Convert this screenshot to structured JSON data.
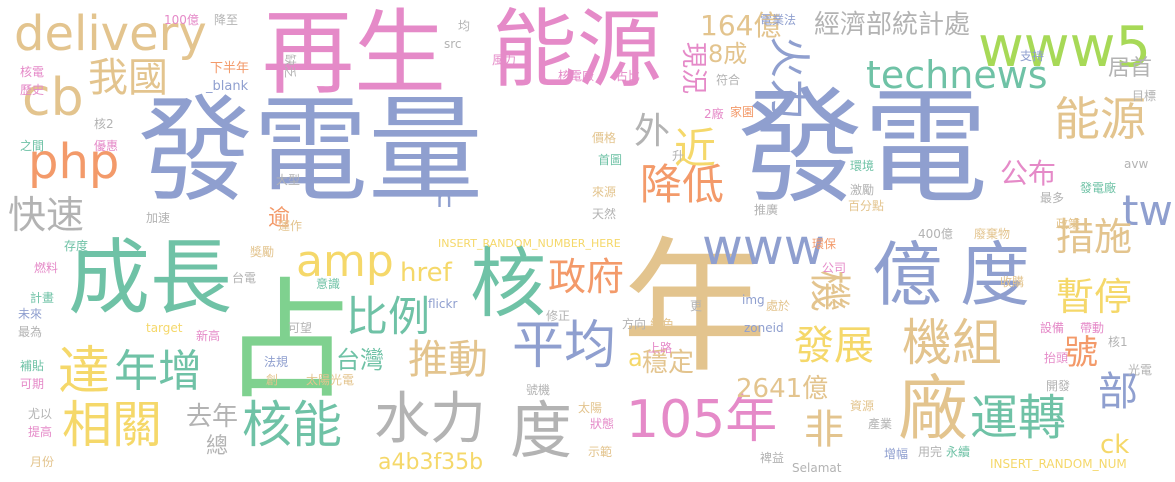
{
  "palette": {
    "blue": "#8f9fcf",
    "pink": "#e58ac8",
    "tan": "#e3c48e",
    "green": "#7fd18f",
    "lime": "#a7d957",
    "orange": "#f39a6a",
    "yellow": "#f5d86a",
    "gray": "#b3b3b3",
    "teal": "#6fc2a6",
    "sky": "#8fd0e8"
  },
  "words": [
    {
      "text": "發電量",
      "color": "#8f9fcf"
    },
    {
      "text": "發電",
      "color": "#8f9fcf"
    },
    {
      "text": "年",
      "color": "#e3c48e"
    },
    {
      "text": "占",
      "color": "#7fd18f"
    },
    {
      "text": "再生",
      "color": "#e58ac8"
    },
    {
      "text": "能源",
      "color": "#e58ac8"
    },
    {
      "text": "億",
      "color": "#8f9fcf"
    },
    {
      "text": "度",
      "color": "#8f9fcf"
    },
    {
      "text": "成長",
      "color": "#6fc2a6"
    },
    {
      "text": "核",
      "color": "#6fc2a6"
    },
    {
      "text": "delivery",
      "color": "#e3c48e"
    },
    {
      "text": "www5",
      "color": "#a7d957"
    },
    {
      "text": "technews",
      "color": "#6fc2a6"
    },
    {
      "text": "cb",
      "color": "#e3c48e"
    },
    {
      "text": "php",
      "color": "#f39a6a"
    },
    {
      "text": "快速",
      "color": "#b3b3b3"
    },
    {
      "text": "我國",
      "color": "#e3c48e"
    },
    {
      "text": "火力",
      "color": "#8f9fcf"
    },
    {
      "text": "能源",
      "color": "#e3c48e"
    },
    {
      "text": "tw",
      "color": "#8f9fcf"
    },
    {
      "text": "措施",
      "color": "#e3c48e"
    },
    {
      "text": "暫停",
      "color": "#f5d86a"
    },
    {
      "text": "降低",
      "color": "#f39a6a"
    },
    {
      "text": "近",
      "color": "#f5d86a"
    },
    {
      "text": "外",
      "color": "#b3b3b3"
    },
    {
      "text": "現況",
      "color": "#e58ac8"
    },
    {
      "text": "8成",
      "color": "#e3c48e"
    },
    {
      "text": "164億",
      "color": "#e3c48e"
    },
    {
      "text": "經濟部統計處",
      "color": "#b3b3b3"
    },
    {
      "text": "居首",
      "color": "#b3b3b3"
    },
    {
      "text": "amp",
      "color": "#f5d86a"
    },
    {
      "text": "www",
      "color": "#8f9fcf"
    },
    {
      "text": "政府",
      "color": "#f39a6a"
    },
    {
      "text": "比例",
      "color": "#6fc2a6"
    },
    {
      "text": "機",
      "color": "#e3c48e"
    },
    {
      "text": "機組",
      "color": "#e3c48e"
    },
    {
      "text": "發展",
      "color": "#f5d86a"
    },
    {
      "text": "公布",
      "color": "#e58ac8"
    },
    {
      "text": "達",
      "color": "#f5d86a"
    },
    {
      "text": "年增",
      "color": "#6fc2a6"
    },
    {
      "text": "推動",
      "color": "#e3c48e"
    },
    {
      "text": "平均",
      "color": "#8f9fcf"
    },
    {
      "text": "相關",
      "color": "#f5d86a"
    },
    {
      "text": "核能",
      "color": "#6fc2a6"
    },
    {
      "text": "去年",
      "color": "#b3b3b3"
    },
    {
      "text": "水力",
      "color": "#b3b3b3"
    },
    {
      "text": "度",
      "color": "#b3b3b3"
    },
    {
      "text": "105年",
      "color": "#e58ac8"
    },
    {
      "text": "非",
      "color": "#e3c48e"
    },
    {
      "text": "廠",
      "color": "#e3c48e"
    },
    {
      "text": "運轉",
      "color": "#6fc2a6"
    },
    {
      "text": "部",
      "color": "#8f9fcf"
    },
    {
      "text": "號",
      "color": "#f39a6a"
    },
    {
      "text": "台灣",
      "color": "#6fc2a6"
    },
    {
      "text": "穩定",
      "color": "#e3c48e"
    },
    {
      "text": "2641億",
      "color": "#e3c48e"
    },
    {
      "text": "a4b3f35b",
      "color": "#f5d86a"
    },
    {
      "text": "href",
      "color": "#f5d86a"
    },
    {
      "text": "n",
      "color": "#8f9fcf"
    },
    {
      "text": "a",
      "color": "#f5d86a"
    },
    {
      "text": "ck",
      "color": "#f5d86a"
    },
    {
      "text": "總",
      "color": "#b3b3b3"
    },
    {
      "text": "逾",
      "color": "#f39a6a"
    },
    {
      "text": "INSERT_RANDOM_NUMBER_HERE",
      "color": "#f5d86a"
    },
    {
      "text": "INSERT_RANDOM_NUM",
      "color": "#f5d86a"
    },
    {
      "text": "100億",
      "color": "#e58ac8"
    },
    {
      "text": "降至",
      "color": "#b3b3b3"
    },
    {
      "text": "均",
      "color": "#b3b3b3"
    },
    {
      "text": "電業法",
      "color": "#8f9fcf"
    },
    {
      "text": "支持",
      "color": "#8f9fcf"
    },
    {
      "text": "下半年",
      "color": "#f39a6a"
    },
    {
      "text": "_blank",
      "color": "#8f9fcf"
    },
    {
      "text": "缺乏",
      "color": "#b3b3b3"
    },
    {
      "text": "核電廠",
      "color": "#e58ac8"
    },
    {
      "text": "占比",
      "color": "#e58ac8"
    },
    {
      "text": "src",
      "color": "#b3b3b3"
    },
    {
      "text": "風力",
      "color": "#e58ac8"
    },
    {
      "text": "符合",
      "color": "#b3b3b3"
    },
    {
      "text": "目標",
      "color": "#b3b3b3"
    },
    {
      "text": "2廠",
      "color": "#e58ac8"
    },
    {
      "text": "家園",
      "color": "#f39a6a"
    },
    {
      "text": "歷史",
      "color": "#e58ac8"
    },
    {
      "text": "核電",
      "color": "#e58ac8"
    },
    {
      "text": "核2",
      "color": "#b3b3b3"
    },
    {
      "text": "之間",
      "color": "#6fc2a6"
    },
    {
      "text": "優惠",
      "color": "#e58ac8"
    },
    {
      "text": "價格",
      "color": "#e3c48e"
    },
    {
      "text": "首圖",
      "color": "#6fc2a6"
    },
    {
      "text": "升",
      "color": "#b3b3b3"
    },
    {
      "text": "avw",
      "color": "#b3b3b3"
    },
    {
      "text": "環境",
      "color": "#6fc2a6"
    },
    {
      "text": "激勵",
      "color": "#b3b3b3"
    },
    {
      "text": "最多",
      "color": "#b3b3b3"
    },
    {
      "text": "發電廠",
      "color": "#6fc2a6"
    },
    {
      "text": "大型",
      "color": "#b3b3b3"
    },
    {
      "text": "來源",
      "color": "#e3c48e"
    },
    {
      "text": "天然",
      "color": "#b3b3b3"
    },
    {
      "text": "推廣",
      "color": "#b3b3b3"
    },
    {
      "text": "百分點",
      "color": "#e3c48e"
    },
    {
      "text": "加速",
      "color": "#b3b3b3"
    },
    {
      "text": "運作",
      "color": "#e3c48e"
    },
    {
      "text": "政策",
      "color": "#e3c48e"
    },
    {
      "text": "存度",
      "color": "#6fc2a6"
    },
    {
      "text": "獎勵",
      "color": "#e3c48e"
    },
    {
      "text": "400億",
      "color": "#b3b3b3"
    },
    {
      "text": "環保",
      "color": "#f39a6a"
    },
    {
      "text": "廢棄物",
      "color": "#e3c48e"
    },
    {
      "text": "燃料",
      "color": "#e58ac8"
    },
    {
      "text": "台電",
      "color": "#b3b3b3"
    },
    {
      "text": "意識",
      "color": "#6fc2a6"
    },
    {
      "text": "公司",
      "color": "#e58ac8"
    },
    {
      "text": "收購",
      "color": "#e3c48e"
    },
    {
      "text": "計畫",
      "color": "#6fc2a6"
    },
    {
      "text": "flickr",
      "color": "#8f9fcf"
    },
    {
      "text": "img",
      "color": "#8f9fcf"
    },
    {
      "text": "處於",
      "color": "#e3c48e"
    },
    {
      "text": "未來",
      "color": "#8f9fcf"
    },
    {
      "text": "target",
      "color": "#f5d86a"
    },
    {
      "text": "更",
      "color": "#b3b3b3"
    },
    {
      "text": "最為",
      "color": "#b3b3b3"
    },
    {
      "text": "新高",
      "color": "#e58ac8"
    },
    {
      "text": "可望",
      "color": "#b3b3b3"
    },
    {
      "text": "修正",
      "color": "#b3b3b3"
    },
    {
      "text": "方向",
      "color": "#b3b3b3"
    },
    {
      "text": "綠色",
      "color": "#e3c48e"
    },
    {
      "text": "zoneid",
      "color": "#8f9fcf"
    },
    {
      "text": "設備",
      "color": "#e58ac8"
    },
    {
      "text": "帶動",
      "color": "#e58ac8"
    },
    {
      "text": "核1",
      "color": "#b3b3b3"
    },
    {
      "text": "補貼",
      "color": "#6fc2a6"
    },
    {
      "text": "法規",
      "color": "#8f9fcf"
    },
    {
      "text": "上路",
      "color": "#e58ac8"
    },
    {
      "text": "抬頭",
      "color": "#e58ac8"
    },
    {
      "text": "光電",
      "color": "#b3b3b3"
    },
    {
      "text": "可期",
      "color": "#e58ac8"
    },
    {
      "text": "創",
      "color": "#e3c48e"
    },
    {
      "text": "太陽光電",
      "color": "#e3c48e"
    },
    {
      "text": "開發",
      "color": "#b3b3b3"
    },
    {
      "text": "尤以",
      "color": "#b3b3b3"
    },
    {
      "text": "號機",
      "color": "#b3b3b3"
    },
    {
      "text": "太陽",
      "color": "#e3c48e"
    },
    {
      "text": "資源",
      "color": "#e3c48e"
    },
    {
      "text": "提高",
      "color": "#e58ac8"
    },
    {
      "text": "狀態",
      "color": "#e58ac8"
    },
    {
      "text": "產業",
      "color": "#b3b3b3"
    },
    {
      "text": "月份",
      "color": "#e3c48e"
    },
    {
      "text": "示範",
      "color": "#e3c48e"
    },
    {
      "text": "裨益",
      "color": "#b3b3b3"
    },
    {
      "text": "Selamat",
      "color": "#b3b3b3"
    },
    {
      "text": "增幅",
      "color": "#8f9fcf"
    },
    {
      "text": "用完",
      "color": "#b3b3b3"
    },
    {
      "text": "永續",
      "color": "#6fc2a6"
    }
  ]
}
